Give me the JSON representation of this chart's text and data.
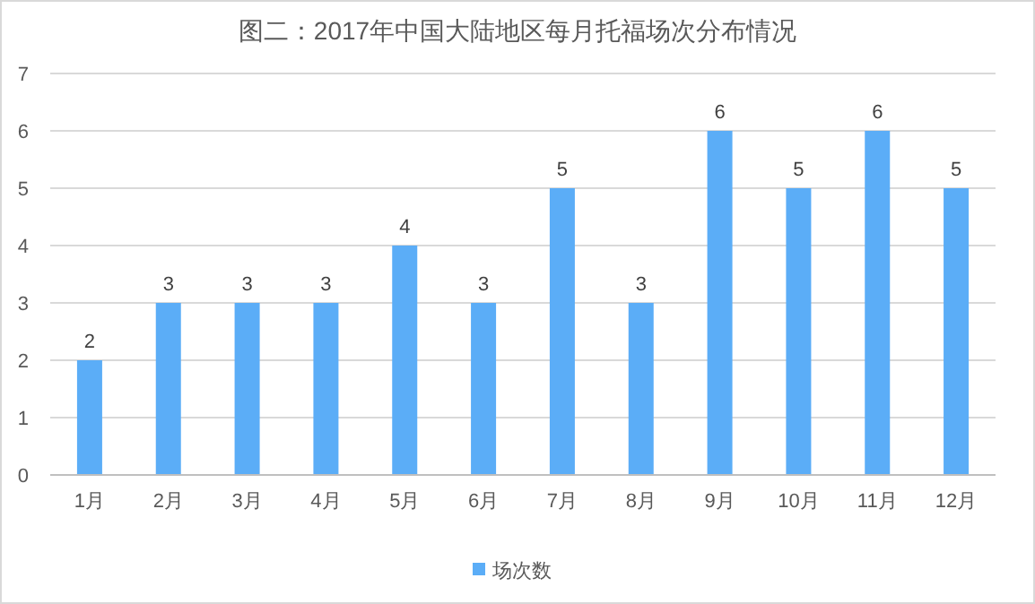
{
  "chart_data": {
    "type": "bar",
    "title": "图二：2017年中国大陆地区每月托福场次分布情况",
    "categories": [
      "1月",
      "2月",
      "3月",
      "4月",
      "5月",
      "6月",
      "7月",
      "8月",
      "9月",
      "10月",
      "11月",
      "12月"
    ],
    "series": [
      {
        "name": "场次数",
        "color": "#5badf7",
        "values": [
          2,
          3,
          3,
          3,
          4,
          3,
          5,
          3,
          6,
          5,
          6,
          5
        ]
      }
    ],
    "ylim": [
      0,
      7
    ],
    "yticks": [
      0,
      1,
      2,
      3,
      4,
      5,
      6,
      7
    ],
    "grid": "y",
    "legend": "bottom",
    "data_labels": true
  }
}
